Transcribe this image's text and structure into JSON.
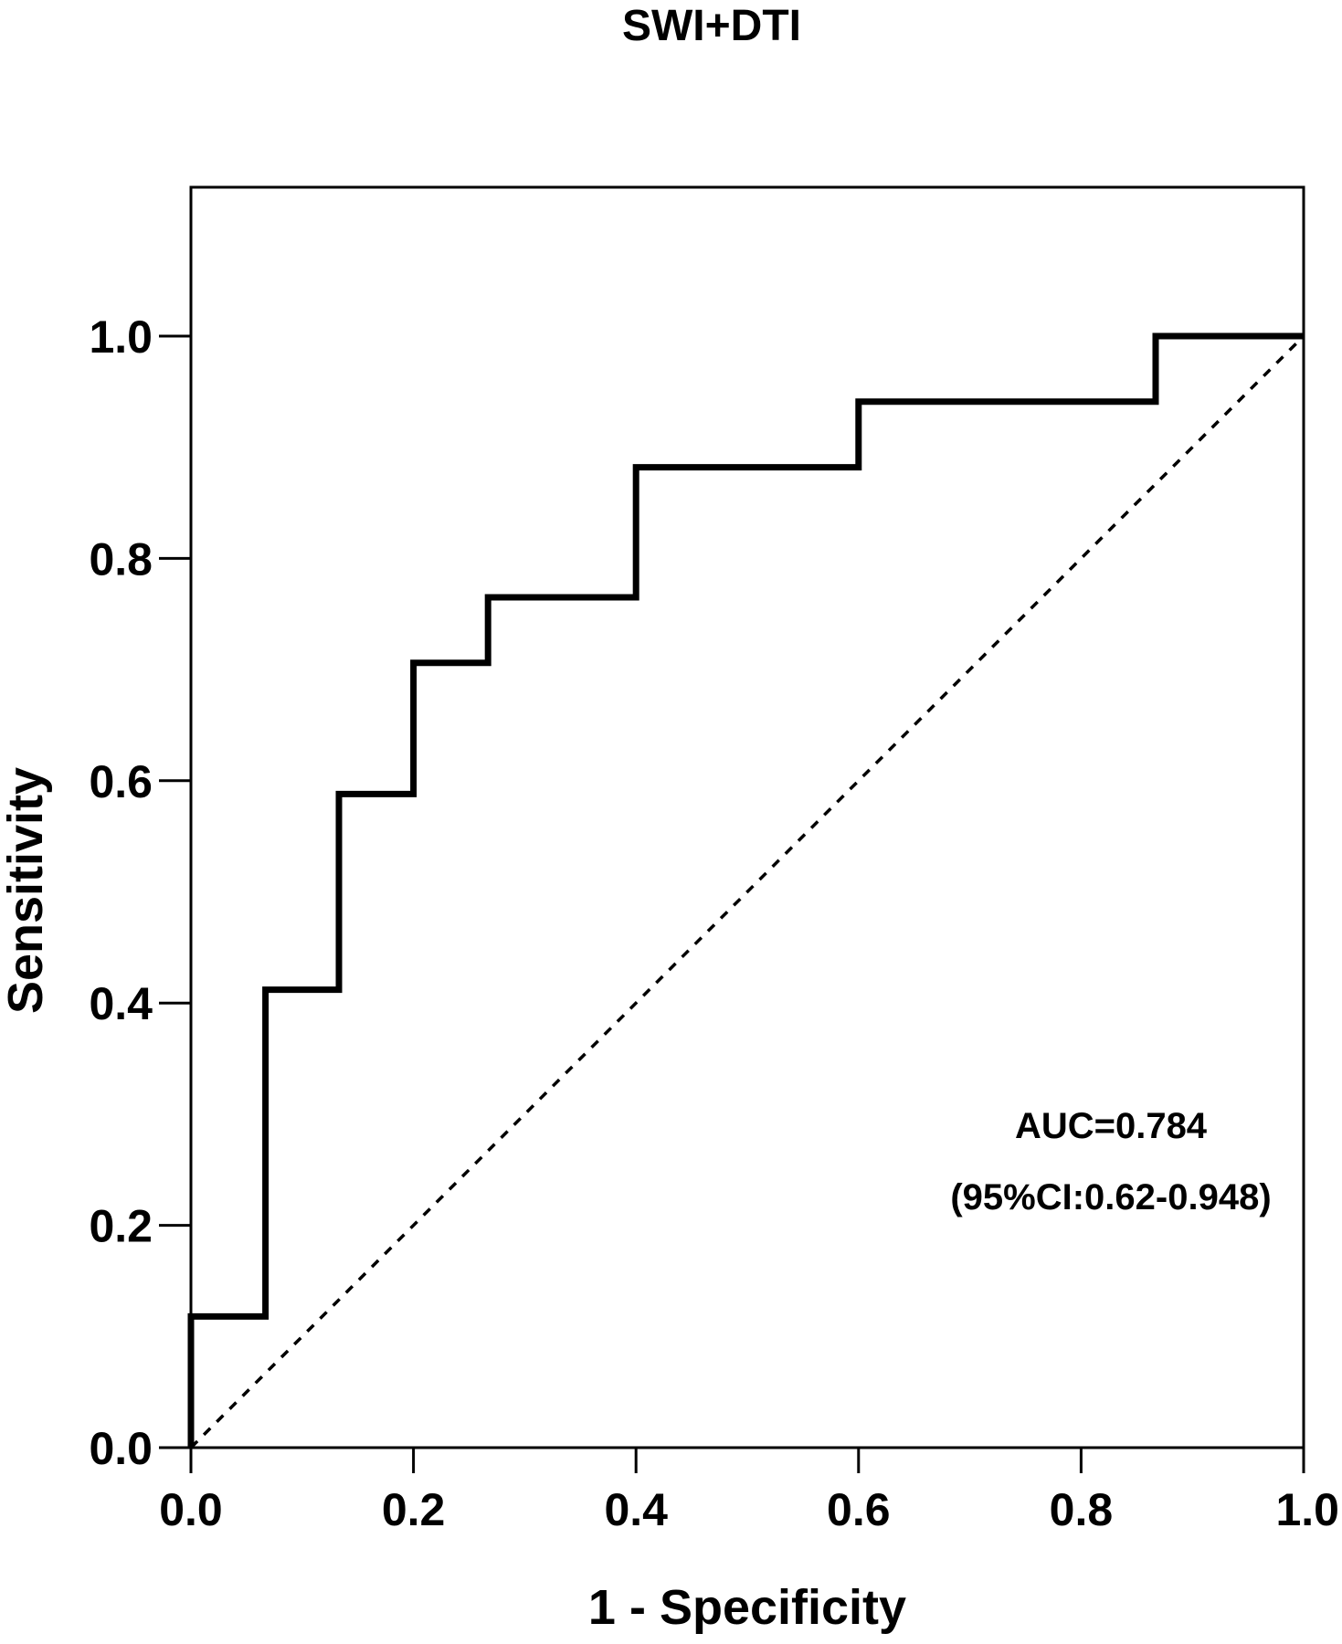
{
  "chart_data": {
    "type": "line",
    "title": "SWI+DTI",
    "xlabel": "1 - Specificity",
    "ylabel": "Sensitivity",
    "xlim": [
      0,
      1
    ],
    "ylim": [
      0,
      1.13
    ],
    "xticks": [
      "0.0",
      "0.2",
      "0.4",
      "0.6",
      "0.8",
      "1.0"
    ],
    "yticks": [
      "0.0",
      "0.2",
      "0.4",
      "0.6",
      "0.8",
      "1.0"
    ],
    "grid": false,
    "series": [
      {
        "style": "step",
        "color": "#000000",
        "x": [
          0,
          0,
          0.067,
          0.067,
          0.133,
          0.133,
          0.2,
          0.2,
          0.267,
          0.267,
          0.4,
          0.4,
          0.6,
          0.6,
          0.867,
          0.867,
          1.0
        ],
        "y": [
          0,
          0.118,
          0.118,
          0.412,
          0.412,
          0.588,
          0.588,
          0.706,
          0.706,
          0.765,
          0.765,
          0.882,
          0.882,
          0.941,
          0.941,
          1.0,
          1.0
        ]
      },
      {
        "style": "dashed",
        "color": "#000000",
        "x": [
          0,
          1
        ],
        "y": [
          0,
          1
        ]
      }
    ],
    "annotations": [
      "AUC=0.784",
      "(95%CI:0.62-0.948)"
    ]
  }
}
